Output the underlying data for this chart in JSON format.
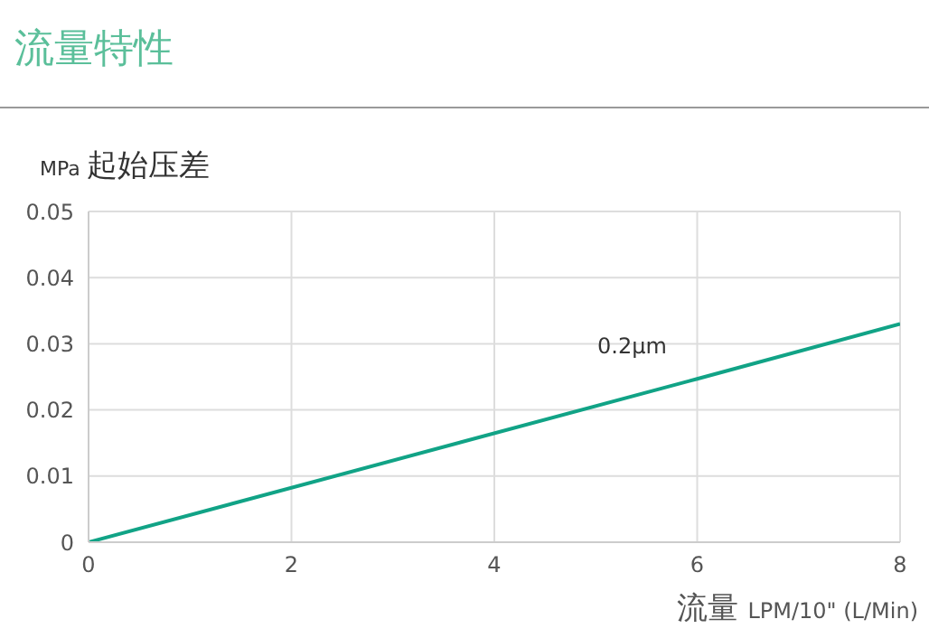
{
  "chart_data": {
    "type": "line",
    "title": "流量特性",
    "ylabel": "MPa 起始压差",
    "xlabel": "流量 LPM/10\" (L/Min)",
    "x": [
      0,
      6,
      8
    ],
    "series": [
      {
        "name": "0.2μm",
        "color": "#11a386",
        "values": [
          0,
          0.0247,
          0.033
        ]
      }
    ],
    "xlim": [
      0,
      8
    ],
    "xticks": [
      0,
      2,
      4,
      6,
      8
    ],
    "ylim": [
      0,
      0.05
    ],
    "yticks": [
      0,
      0.01,
      0.02,
      0.03,
      0.04,
      0.05
    ],
    "grid": true,
    "legend": false,
    "marker": "none",
    "line_style": "solid"
  }
}
